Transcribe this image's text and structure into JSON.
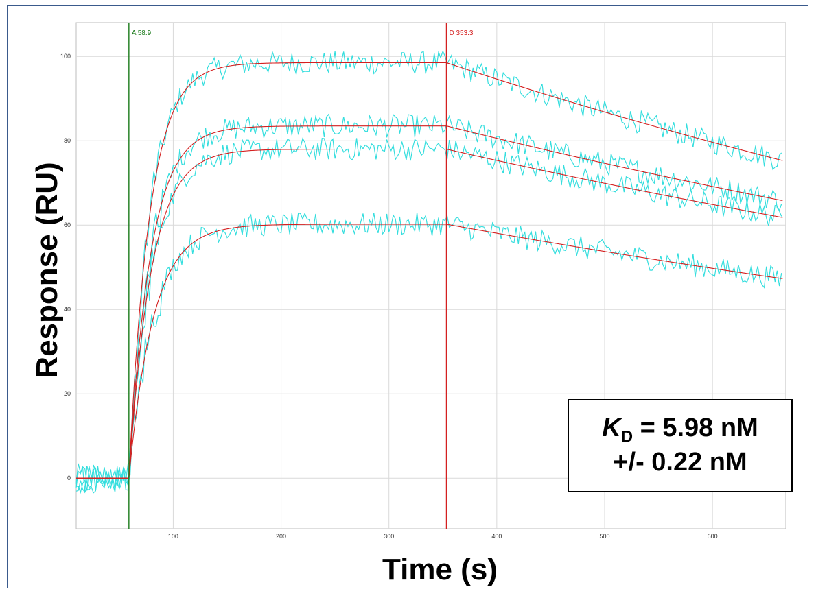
{
  "chart_data": {
    "type": "line",
    "ylabel": "Response (RU)",
    "xlabel": "Time (s)",
    "xlim": [
      10,
      668
    ],
    "ylim": [
      -12,
      108
    ],
    "xticks": [
      100,
      200,
      300,
      400,
      500,
      600
    ],
    "yticks": [
      0,
      20,
      40,
      60,
      80,
      100
    ],
    "grid": true,
    "markers": [
      {
        "label": "A 58.9",
        "x": 58.9,
        "color": "#1a7a1a"
      },
      {
        "label": "D 353.3",
        "x": 353.3,
        "color": "#d42020"
      }
    ],
    "fit": {
      "association_start": 58.9,
      "dissociation_start": 353.3,
      "end": 665,
      "curves": [
        {
          "max": 98.5,
          "end_value": 75.3
        },
        {
          "max": 83.5,
          "end_value": 65.8
        },
        {
          "max": 78.0,
          "end_value": 61.8
        },
        {
          "max": 60.2,
          "end_value": 47.3
        }
      ]
    },
    "series_colors": {
      "sensorgram": "#35dede",
      "fit": "#d42020"
    },
    "annotation": {
      "prefix": "K",
      "subscript": "D",
      "line1": " = 5.98 nM",
      "line2": "+/- 0.22 nM"
    }
  }
}
